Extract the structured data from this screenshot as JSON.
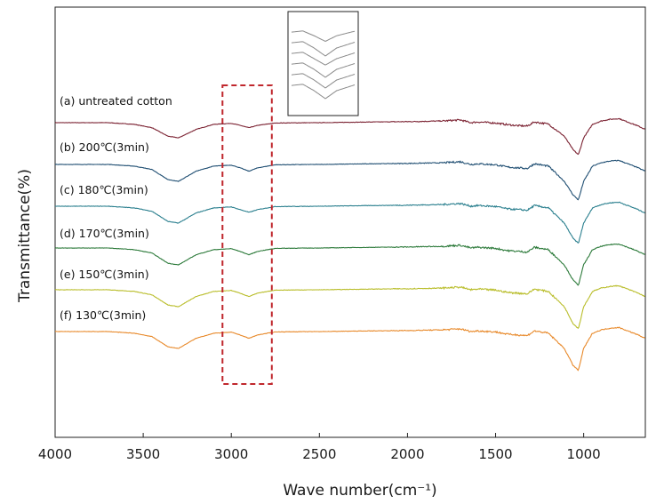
{
  "chart_data": {
    "type": "line",
    "title": "",
    "xlabel": "Wave number(cm⁻¹)",
    "ylabel": "Transmittance(%)",
    "xlim": [
      4000,
      650
    ],
    "x_reversed": true,
    "x_ticks": [
      "4000",
      "3500",
      "3000",
      "2500",
      "2000",
      "1500",
      "1000"
    ],
    "y_ticks_shown": false,
    "grid": false,
    "legend": "inline labels left of each curve",
    "highlight_box": {
      "x_range": [
        3050,
        2770
      ],
      "style": "dashed",
      "color": "#c0272d"
    },
    "inset": {
      "description_shown": false,
      "x_range": [
        3050,
        2770
      ]
    },
    "series": [
      {
        "name": "(a) untreated cotton",
        "color": "#7a2030",
        "offset": 0,
        "points": [
          [
            4000,
            0
          ],
          [
            3700,
            0
          ],
          [
            3550,
            -0.05
          ],
          [
            3450,
            -0.15
          ],
          [
            3360,
            -0.4
          ],
          [
            3300,
            -0.45
          ],
          [
            3200,
            -0.2
          ],
          [
            3100,
            -0.05
          ],
          [
            3000,
            -0.02
          ],
          [
            2950,
            -0.08
          ],
          [
            2900,
            -0.15
          ],
          [
            2850,
            -0.08
          ],
          [
            2750,
            -0.01
          ],
          [
            2500,
            0
          ],
          [
            2200,
            0.02
          ],
          [
            2000,
            0.03
          ],
          [
            1800,
            0.05
          ],
          [
            1700,
            0.08
          ],
          [
            1640,
            0.0
          ],
          [
            1600,
            0.02
          ],
          [
            1500,
            -0.01
          ],
          [
            1430,
            -0.06
          ],
          [
            1370,
            -0.09
          ],
          [
            1320,
            -0.1
          ],
          [
            1280,
            0.02
          ],
          [
            1200,
            -0.04
          ],
          [
            1160,
            -0.2
          ],
          [
            1110,
            -0.4
          ],
          [
            1060,
            -0.8
          ],
          [
            1030,
            -0.95
          ],
          [
            1000,
            -0.45
          ],
          [
            950,
            -0.05
          ],
          [
            900,
            0.05
          ],
          [
            850,
            0.1
          ],
          [
            800,
            0.12
          ],
          [
            700,
            -0.08
          ],
          [
            650,
            -0.2
          ]
        ]
      },
      {
        "name": "(b) 200℃(3min)",
        "color": "#1f4e72",
        "offset": 1,
        "points": [
          [
            4000,
            0
          ],
          [
            3700,
            0
          ],
          [
            3550,
            -0.05
          ],
          [
            3450,
            -0.15
          ],
          [
            3360,
            -0.45
          ],
          [
            3300,
            -0.5
          ],
          [
            3200,
            -0.2
          ],
          [
            3100,
            -0.05
          ],
          [
            3000,
            -0.02
          ],
          [
            2950,
            -0.1
          ],
          [
            2900,
            -0.2
          ],
          [
            2850,
            -0.1
          ],
          [
            2750,
            -0.01
          ],
          [
            2500,
            0
          ],
          [
            2200,
            0.02
          ],
          [
            2000,
            0.03
          ],
          [
            1800,
            0.05
          ],
          [
            1700,
            0.08
          ],
          [
            1640,
            0.0
          ],
          [
            1600,
            0.02
          ],
          [
            1500,
            -0.01
          ],
          [
            1430,
            -0.08
          ],
          [
            1370,
            -0.1
          ],
          [
            1320,
            -0.12
          ],
          [
            1280,
            0.02
          ],
          [
            1200,
            -0.05
          ],
          [
            1160,
            -0.25
          ],
          [
            1110,
            -0.5
          ],
          [
            1060,
            -0.9
          ],
          [
            1030,
            -1.05
          ],
          [
            1000,
            -0.5
          ],
          [
            950,
            -0.05
          ],
          [
            900,
            0.05
          ],
          [
            850,
            0.1
          ],
          [
            800,
            0.12
          ],
          [
            700,
            -0.08
          ],
          [
            650,
            -0.2
          ]
        ]
      },
      {
        "name": "(c) 180℃(3min)",
        "color": "#2a7f8e",
        "offset": 2,
        "points": [
          [
            4000,
            0
          ],
          [
            3700,
            0
          ],
          [
            3550,
            -0.05
          ],
          [
            3450,
            -0.15
          ],
          [
            3360,
            -0.45
          ],
          [
            3300,
            -0.5
          ],
          [
            3200,
            -0.2
          ],
          [
            3100,
            -0.05
          ],
          [
            3000,
            -0.02
          ],
          [
            2950,
            -0.1
          ],
          [
            2900,
            -0.18
          ],
          [
            2850,
            -0.1
          ],
          [
            2750,
            -0.01
          ],
          [
            2500,
            0
          ],
          [
            2200,
            0.02
          ],
          [
            2000,
            0.03
          ],
          [
            1800,
            0.05
          ],
          [
            1700,
            0.08
          ],
          [
            1640,
            0.0
          ],
          [
            1600,
            0.02
          ],
          [
            1500,
            -0.01
          ],
          [
            1430,
            -0.08
          ],
          [
            1370,
            -0.1
          ],
          [
            1320,
            -0.12
          ],
          [
            1280,
            0.02
          ],
          [
            1200,
            -0.05
          ],
          [
            1160,
            -0.25
          ],
          [
            1110,
            -0.5
          ],
          [
            1060,
            -0.95
          ],
          [
            1030,
            -1.1
          ],
          [
            1000,
            -0.5
          ],
          [
            950,
            -0.05
          ],
          [
            900,
            0.05
          ],
          [
            850,
            0.1
          ],
          [
            800,
            0.12
          ],
          [
            700,
            -0.08
          ],
          [
            650,
            -0.2
          ]
        ]
      },
      {
        "name": "(d) 170℃(3min)",
        "color": "#2c7a3a",
        "offset": 3,
        "points": [
          [
            4000,
            0
          ],
          [
            3700,
            0
          ],
          [
            3550,
            -0.05
          ],
          [
            3450,
            -0.15
          ],
          [
            3360,
            -0.45
          ],
          [
            3300,
            -0.5
          ],
          [
            3200,
            -0.2
          ],
          [
            3100,
            -0.05
          ],
          [
            3000,
            -0.02
          ],
          [
            2950,
            -0.1
          ],
          [
            2900,
            -0.2
          ],
          [
            2850,
            -0.1
          ],
          [
            2750,
            -0.01
          ],
          [
            2500,
            0
          ],
          [
            2200,
            0.02
          ],
          [
            2000,
            0.03
          ],
          [
            1800,
            0.05
          ],
          [
            1700,
            0.08
          ],
          [
            1640,
            0.0
          ],
          [
            1600,
            0.02
          ],
          [
            1500,
            -0.01
          ],
          [
            1430,
            -0.08
          ],
          [
            1370,
            -0.1
          ],
          [
            1320,
            -0.12
          ],
          [
            1280,
            0.02
          ],
          [
            1200,
            -0.05
          ],
          [
            1160,
            -0.25
          ],
          [
            1110,
            -0.5
          ],
          [
            1060,
            -0.95
          ],
          [
            1030,
            -1.1
          ],
          [
            1000,
            -0.5
          ],
          [
            950,
            -0.05
          ],
          [
            900,
            0.05
          ],
          [
            850,
            0.1
          ],
          [
            800,
            0.12
          ],
          [
            700,
            -0.08
          ],
          [
            650,
            -0.2
          ]
        ]
      },
      {
        "name": "(e) 150℃(3min)",
        "color": "#b9bd2a",
        "offset": 4,
        "points": [
          [
            4000,
            0
          ],
          [
            3700,
            0
          ],
          [
            3550,
            -0.05
          ],
          [
            3450,
            -0.15
          ],
          [
            3360,
            -0.45
          ],
          [
            3300,
            -0.5
          ],
          [
            3200,
            -0.2
          ],
          [
            3100,
            -0.05
          ],
          [
            3000,
            -0.02
          ],
          [
            2950,
            -0.1
          ],
          [
            2900,
            -0.2
          ],
          [
            2850,
            -0.1
          ],
          [
            2750,
            -0.01
          ],
          [
            2500,
            0
          ],
          [
            2200,
            0.02
          ],
          [
            2000,
            0.03
          ],
          [
            1800,
            0.05
          ],
          [
            1700,
            0.08
          ],
          [
            1640,
            0.0
          ],
          [
            1600,
            0.02
          ],
          [
            1500,
            -0.01
          ],
          [
            1430,
            -0.08
          ],
          [
            1370,
            -0.1
          ],
          [
            1320,
            -0.12
          ],
          [
            1280,
            0.02
          ],
          [
            1200,
            -0.05
          ],
          [
            1160,
            -0.25
          ],
          [
            1110,
            -0.5
          ],
          [
            1060,
            -1.0
          ],
          [
            1030,
            -1.15
          ],
          [
            1000,
            -0.5
          ],
          [
            950,
            -0.05
          ],
          [
            900,
            0.05
          ],
          [
            850,
            0.1
          ],
          [
            800,
            0.12
          ],
          [
            700,
            -0.08
          ],
          [
            650,
            -0.2
          ]
        ]
      },
      {
        "name": "(f) 130℃(3min)",
        "color": "#e8892a",
        "offset": 5,
        "points": [
          [
            4000,
            0
          ],
          [
            3700,
            0
          ],
          [
            3550,
            -0.05
          ],
          [
            3450,
            -0.15
          ],
          [
            3360,
            -0.45
          ],
          [
            3300,
            -0.5
          ],
          [
            3200,
            -0.2
          ],
          [
            3100,
            -0.05
          ],
          [
            3000,
            -0.02
          ],
          [
            2950,
            -0.1
          ],
          [
            2900,
            -0.2
          ],
          [
            2850,
            -0.1
          ],
          [
            2750,
            -0.01
          ],
          [
            2500,
            0
          ],
          [
            2200,
            0.02
          ],
          [
            2000,
            0.03
          ],
          [
            1800,
            0.05
          ],
          [
            1700,
            0.08
          ],
          [
            1640,
            0.0
          ],
          [
            1600,
            0.02
          ],
          [
            1500,
            -0.01
          ],
          [
            1430,
            -0.08
          ],
          [
            1370,
            -0.1
          ],
          [
            1320,
            -0.12
          ],
          [
            1280,
            0.02
          ],
          [
            1200,
            -0.05
          ],
          [
            1160,
            -0.25
          ],
          [
            1110,
            -0.5
          ],
          [
            1060,
            -1.0
          ],
          [
            1030,
            -1.15
          ],
          [
            1000,
            -0.5
          ],
          [
            950,
            -0.05
          ],
          [
            900,
            0.05
          ],
          [
            850,
            0.1
          ],
          [
            800,
            0.12
          ],
          [
            700,
            -0.08
          ],
          [
            650,
            -0.2
          ]
        ]
      }
    ]
  }
}
